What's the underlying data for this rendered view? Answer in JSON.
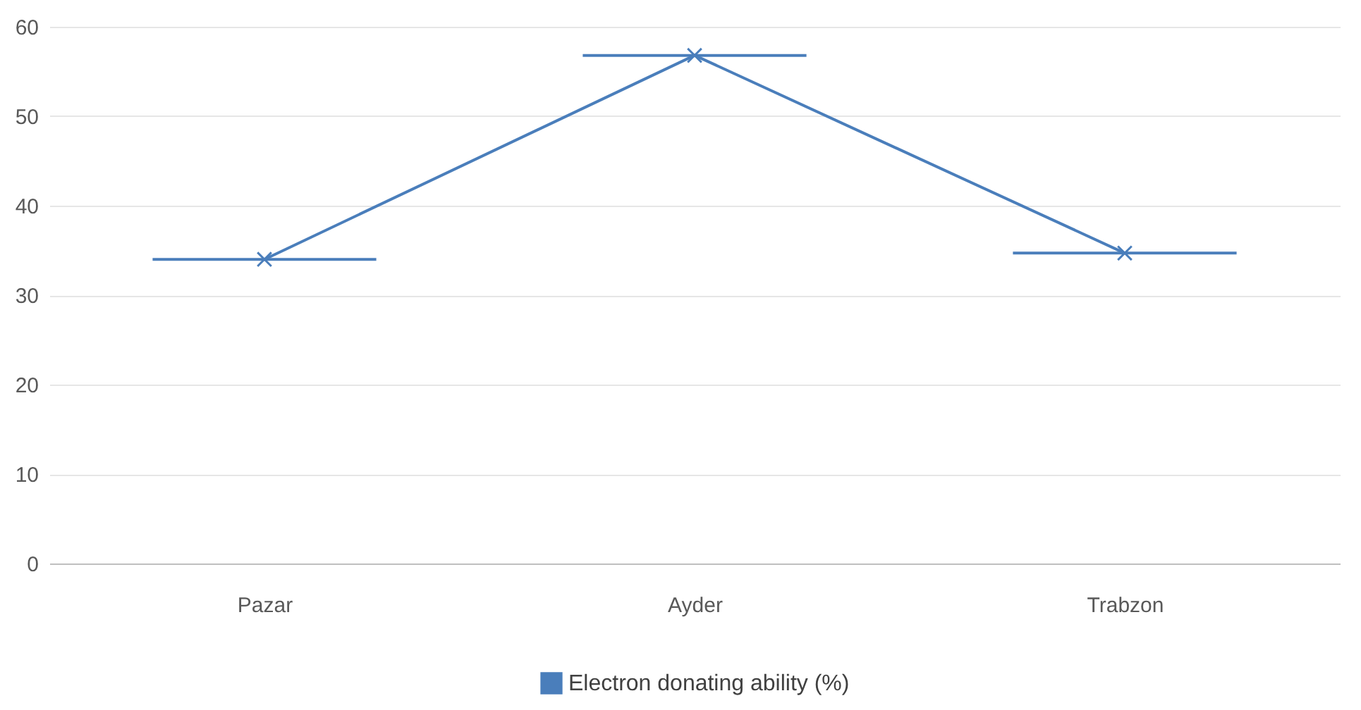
{
  "chart_data": {
    "type": "line",
    "categories": [
      "Pazar",
      "Ayder",
      "Trabzon"
    ],
    "series": [
      {
        "name": "Electron donating ability (%)",
        "color": "#4a7ebb",
        "values": [
          34,
          56.8,
          34.7
        ]
      }
    ],
    "ylim": [
      0,
      60
    ],
    "yticks": [
      0,
      10,
      20,
      30,
      40,
      50,
      60
    ],
    "grid": "y",
    "legend": "bottom",
    "marker": "cross",
    "line_style": "solid"
  }
}
